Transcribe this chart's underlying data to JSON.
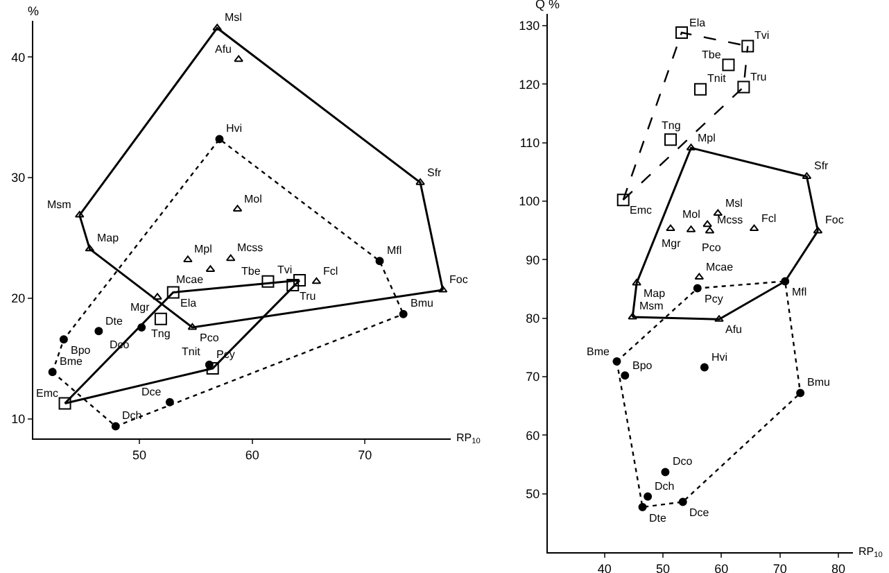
{
  "chart_data": [
    {
      "type": "scatter",
      "xlabel": "RP$_{10}$",
      "ylabel": "%",
      "xlim": [
        40.6,
        77.6
      ],
      "ylim": [
        8.4,
        43
      ],
      "xticks": [
        50,
        60,
        70
      ],
      "yticks": [
        10,
        20,
        30,
        40
      ],
      "series": [
        {
          "type": "scatter",
          "marker": "triangle",
          "color": "#000000",
          "x": [
            56.9,
            74.9,
            76.9,
            54.7,
            51.6,
            45.6,
            44.7,
            58.8,
            58.7,
            54.3,
            56.3,
            58.1,
            65.7
          ],
          "values": [
            42.4,
            29.6,
            20.7,
            17.6,
            20.1,
            24.1,
            26.9,
            39.8,
            27.4,
            23.2,
            22.4,
            23.3,
            21.4
          ]
        },
        {
          "type": "scatter",
          "marker": "square",
          "color": "#000000",
          "x": [
            43.4,
            53.0,
            64.2,
            56.5,
            61.4,
            63.6,
            51.9
          ],
          "values": [
            11.3,
            20.5,
            21.5,
            14.2,
            21.4,
            21.1,
            18.3
          ]
        },
        {
          "type": "scatter",
          "marker": "circle",
          "color": "#000000",
          "x": [
            57.1,
            71.3,
            73.4,
            47.9,
            42.3,
            43.3,
            46.4,
            50.2,
            56.2,
            52.7
          ],
          "values": [
            33.2,
            23.1,
            18.7,
            9.4,
            13.9,
            16.6,
            17.3,
            17.6,
            14.5,
            11.4
          ]
        },
        {
          "type": "line",
          "marker": "none",
          "line_style": "solid",
          "color": "#000000",
          "x": [
            44.7,
            56.9,
            74.9,
            76.9
          ],
          "values": [
            26.9,
            42.4,
            29.6,
            20.7
          ]
        },
        {
          "type": "line",
          "marker": "none",
          "line_style": "solid",
          "color": "#000000",
          "x": [
            44.7,
            45.6,
            54.7,
            76.9
          ],
          "values": [
            26.9,
            24.1,
            17.6,
            20.7
          ]
        },
        {
          "type": "line",
          "marker": "none",
          "line_style": "solid",
          "color": "#000000",
          "x": [
            43.4,
            53.0,
            64.2
          ],
          "values": [
            11.3,
            20.5,
            21.5
          ]
        },
        {
          "type": "line",
          "marker": "none",
          "line_style": "solid",
          "color": "#000000",
          "x": [
            43.4,
            56.5,
            64.2
          ],
          "values": [
            11.3,
            14.2,
            21.5
          ]
        },
        {
          "type": "line",
          "marker": "none",
          "line_style": "dotted",
          "color": "#000000",
          "x": [
            42.3,
            43.3,
            57.1,
            71.3,
            73.4
          ],
          "values": [
            13.9,
            16.6,
            33.2,
            23.1,
            18.7
          ]
        },
        {
          "type": "line",
          "marker": "none",
          "line_style": "dotted",
          "color": "#000000",
          "x": [
            42.3,
            47.9,
            73.4
          ],
          "values": [
            13.9,
            9.4,
            18.7
          ]
        }
      ],
      "annotations": [
        {
          "text": "Msl",
          "x": 56.9,
          "y": 42.4
        },
        {
          "text": "Sfr",
          "x": 74.9,
          "y": 29.6
        },
        {
          "text": "Foc",
          "x": 76.9,
          "y": 20.7
        },
        {
          "text": "Pco",
          "x": 54.7,
          "y": 17.6
        },
        {
          "text": "Mgr",
          "x": 51.6,
          "y": 20.1
        },
        {
          "text": "Map",
          "x": 45.6,
          "y": 24.1
        },
        {
          "text": "Msm",
          "x": 44.7,
          "y": 26.9
        },
        {
          "text": "Afu",
          "x": 58.8,
          "y": 39.8
        },
        {
          "text": "Mol",
          "x": 58.7,
          "y": 27.4
        },
        {
          "text": "Mpl",
          "x": 54.3,
          "y": 23.2
        },
        {
          "text": "Mcae",
          "x": 56.3,
          "y": 22.4
        },
        {
          "text": "Mcss",
          "x": 58.1,
          "y": 23.3
        },
        {
          "text": "Fcl",
          "x": 65.7,
          "y": 21.4
        },
        {
          "text": "Emc",
          "x": 43.4,
          "y": 11.3
        },
        {
          "text": "Ela",
          "x": 53.0,
          "y": 20.5
        },
        {
          "text": "Tvi",
          "x": 64.2,
          "y": 21.5
        },
        {
          "text": "Tnit",
          "x": 56.5,
          "y": 14.2
        },
        {
          "text": "Tbe",
          "x": 61.4,
          "y": 21.4
        },
        {
          "text": "Tru",
          "x": 63.6,
          "y": 21.1
        },
        {
          "text": "Tng",
          "x": 51.9,
          "y": 18.3
        },
        {
          "text": "Hvi",
          "x": 57.1,
          "y": 33.2
        },
        {
          "text": "Mfl",
          "x": 71.3,
          "y": 23.1
        },
        {
          "text": "Bmu",
          "x": 73.4,
          "y": 18.7
        },
        {
          "text": "Dch",
          "x": 47.9,
          "y": 9.4
        },
        {
          "text": "Bme",
          "x": 42.3,
          "y": 13.9
        },
        {
          "text": "Bpo",
          "x": 43.3,
          "y": 16.6
        },
        {
          "text": "Dte",
          "x": 46.4,
          "y": 17.3
        },
        {
          "text": "Dco",
          "x": 50.2,
          "y": 17.6
        },
        {
          "text": "Pcy",
          "x": 56.2,
          "y": 14.5
        },
        {
          "text": "Dce",
          "x": 52.7,
          "y": 11.4
        }
      ]
    },
    {
      "type": "scatter",
      "xlabel": "RP$_{10}$",
      "ylabel": "Q %",
      "xlim": [
        30.3,
        82.5
      ],
      "ylim": [
        40,
        132
      ],
      "xticks": [
        40,
        50,
        60,
        70,
        80
      ],
      "yticks": [
        50,
        60,
        70,
        80,
        90,
        100,
        110,
        120,
        130
      ],
      "series": [
        {
          "type": "scatter",
          "marker": "triangle",
          "color": "#000000",
          "x": [
            54.8,
            74.6,
            76.5,
            59.6,
            44.8,
            45.5,
            51.3,
            59.4,
            57.6,
            54.8,
            58.0,
            65.6,
            56.2
          ],
          "values": [
            109.1,
            104.2,
            94.9,
            79.8,
            80.2,
            86.0,
            95.3,
            97.9,
            96.0,
            95.1,
            94.9,
            95.3,
            87.0
          ]
        },
        {
          "type": "scatter",
          "marker": "square",
          "color": "#000000",
          "x": [
            53.2,
            64.5,
            61.2,
            56.4,
            63.8,
            51.3,
            43.2
          ],
          "values": [
            128.8,
            126.5,
            123.3,
            119.1,
            119.5,
            110.5,
            100.2
          ]
        },
        {
          "type": "scatter",
          "marker": "circle",
          "color": "#000000",
          "x": [
            55.9,
            70.9,
            73.5,
            53.4,
            46.5,
            47.4,
            50.4,
            42.1,
            43.5,
            57.1
          ],
          "values": [
            85.1,
            86.3,
            67.2,
            48.6,
            47.7,
            49.5,
            53.7,
            72.6,
            70.2,
            71.6
          ]
        },
        {
          "type": "line",
          "marker": "none",
          "line_style": "solid",
          "color": "#000000",
          "x": [
            44.8,
            45.5,
            54.8,
            74.6,
            76.5
          ],
          "values": [
            80.2,
            86.0,
            109.1,
            104.2,
            94.9
          ]
        },
        {
          "type": "line",
          "marker": "none",
          "line_style": "solid",
          "color": "#000000",
          "x": [
            44.8,
            59.6,
            70.9,
            76.5
          ],
          "values": [
            80.2,
            79.8,
            86.3,
            94.9
          ]
        },
        {
          "type": "line",
          "marker": "none",
          "line_style": "dashed",
          "color": "#000000",
          "x": [
            43.2,
            53.2,
            64.5
          ],
          "values": [
            100.2,
            128.8,
            126.5
          ]
        },
        {
          "type": "line",
          "marker": "none",
          "line_style": "dashed",
          "color": "#000000",
          "x": [
            43.2,
            63.8,
            64.5
          ],
          "values": [
            100.2,
            119.5,
            126.5
          ]
        },
        {
          "type": "line",
          "marker": "none",
          "line_style": "dotted",
          "color": "#000000",
          "x": [
            42.1,
            55.9,
            70.9,
            73.5
          ],
          "values": [
            72.6,
            85.1,
            86.3,
            67.2
          ]
        },
        {
          "type": "line",
          "marker": "none",
          "line_style": "dotted",
          "color": "#000000",
          "x": [
            42.1,
            46.5,
            53.4,
            73.5
          ],
          "values": [
            72.6,
            47.7,
            48.6,
            67.2
          ]
        }
      ],
      "annotations": [
        {
          "text": "Mpl",
          "x": 54.8,
          "y": 109.1
        },
        {
          "text": "Sfr",
          "x": 74.6,
          "y": 104.2
        },
        {
          "text": "Foc",
          "x": 76.5,
          "y": 94.9
        },
        {
          "text": "Afu",
          "x": 59.6,
          "y": 79.8
        },
        {
          "text": "Msm",
          "x": 44.8,
          "y": 80.2
        },
        {
          "text": "Map",
          "x": 45.5,
          "y": 86.0
        },
        {
          "text": "Mgr",
          "x": 51.3,
          "y": 95.3
        },
        {
          "text": "Msl",
          "x": 59.4,
          "y": 97.9
        },
        {
          "text": "Mol",
          "x": 57.6,
          "y": 96.0
        },
        {
          "text": "Pco",
          "x": 54.8,
          "y": 95.1
        },
        {
          "text": "Mcss",
          "x": 58.0,
          "y": 94.9
        },
        {
          "text": "Fcl",
          "x": 65.6,
          "y": 95.3
        },
        {
          "text": "Mcae",
          "x": 56.2,
          "y": 87.0
        },
        {
          "text": "Ela",
          "x": 53.2,
          "y": 128.8
        },
        {
          "text": "Tvi",
          "x": 64.5,
          "y": 126.5
        },
        {
          "text": "Tbe",
          "x": 61.2,
          "y": 123.3
        },
        {
          "text": "Tnit",
          "x": 56.4,
          "y": 119.1
        },
        {
          "text": "Tru",
          "x": 63.8,
          "y": 119.5
        },
        {
          "text": "Tng",
          "x": 51.3,
          "y": 110.5
        },
        {
          "text": "Emc",
          "x": 43.2,
          "y": 100.2
        },
        {
          "text": "Pcy",
          "x": 55.9,
          "y": 85.1
        },
        {
          "text": "Mfl",
          "x": 70.9,
          "y": 86.3
        },
        {
          "text": "Bmu",
          "x": 73.5,
          "y": 67.2
        },
        {
          "text": "Dce",
          "x": 53.4,
          "y": 48.6
        },
        {
          "text": "Dte",
          "x": 46.5,
          "y": 47.7
        },
        {
          "text": "Dch",
          "x": 47.4,
          "y": 49.5
        },
        {
          "text": "Dco",
          "x": 50.4,
          "y": 53.7
        },
        {
          "text": "Bme",
          "x": 42.1,
          "y": 72.6
        },
        {
          "text": "Bpo",
          "x": 43.5,
          "y": 70.2
        },
        {
          "text": "Hvi",
          "x": 57.1,
          "y": 71.6
        }
      ]
    }
  ]
}
